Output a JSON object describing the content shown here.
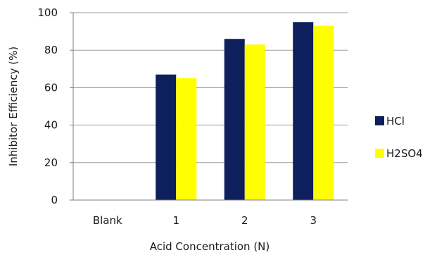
{
  "chart_data": {
    "type": "bar",
    "categories": [
      "Blank",
      "1",
      "2",
      "3"
    ],
    "series": [
      {
        "name": "HCl",
        "values": [
          0,
          67,
          86,
          95
        ]
      },
      {
        "name": "H2SO4",
        "values": [
          0,
          65,
          83,
          93
        ]
      }
    ],
    "title": "",
    "xlabel": "Acid Concentration  (N)",
    "ylabel": "Inhibitor Efficiency  (%)",
    "ylim": [
      0,
      100
    ],
    "yticks": [
      0,
      20,
      40,
      60,
      80,
      100
    ],
    "grid": true,
    "legend_position": "right",
    "colors": {
      "HCl": "#0d1f5c",
      "H2SO4": "#ffff00",
      "grid": "#9a9a9a",
      "axis": "#7f7f7f"
    }
  }
}
